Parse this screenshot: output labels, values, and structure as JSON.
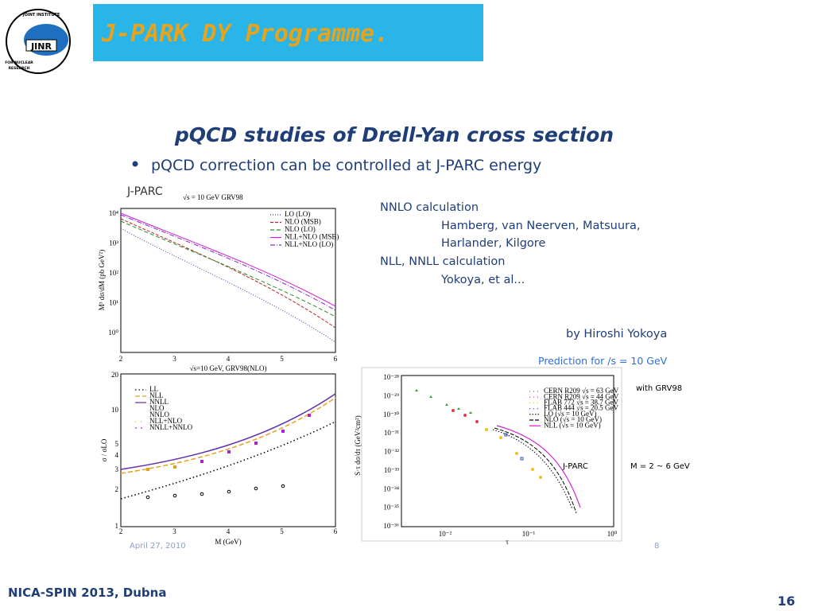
{
  "header": {
    "logo_top": "JOINT INSTITUTE",
    "logo_main": "JINR",
    "logo_bottom1": "FOR NUCLEAR",
    "logo_bottom2": "RESEARCH",
    "title": "J-PARK DY Programme."
  },
  "slide": {
    "heading": "pQCD studies of Drell-Yan cross section",
    "bullet": "pQCD correction can be controlled at J-PARC energy",
    "notes": [
      "NNLO calculation",
      "Hamberg, van Neerven, Matsuura,",
      "Harlander, Kilgore",
      "NLL, NNLL calculation",
      "Yokoya, et al..."
    ],
    "author": "by Hiroshi Yokoya",
    "prediction": "Prediction for /s = 10 GeV",
    "pdf": "with GRV98",
    "jparc": "J-PARC",
    "mass_range": "M = 2 ~ 6 GeV",
    "date": "April 27, 2010",
    "page": "8"
  },
  "plot_top": {
    "label": "J-PARC",
    "subtitle": "√s = 10 GeV GRV98",
    "ylabel": "M³ dσ/dM (pb GeV²)",
    "xlabel": "√s=10 GeV, GRV98(NLO)",
    "xticks": [
      "2",
      "3",
      "4",
      "5",
      "6"
    ],
    "yticks": [
      "10⁰",
      "10¹",
      "10²",
      "10³",
      "10⁴"
    ],
    "legend": [
      "LO (LO)",
      "NLO (MSB)",
      "NLO (LO)",
      "NLL+NLO (MSB)",
      "NLL+NLO (LO)"
    ]
  },
  "plot_ratio": {
    "ylabel": "σ / σLO",
    "xlabel": "M (GeV)",
    "xticks": [
      "2",
      "3",
      "4",
      "5",
      "6"
    ],
    "yticks": [
      "1",
      "2",
      "3",
      "4",
      "5",
      "10",
      "20"
    ],
    "legend": [
      "LL",
      "NLL",
      "NNLL",
      "NLO",
      "NNLO",
      "NLL+NLO",
      "NNLL+NNLO"
    ]
  },
  "plot_tau": {
    "ylabel": "S·τ dσ/dτ (GeV²cm²)",
    "xlabel": "τ",
    "xticks": [
      "10⁻²",
      "10⁻¹",
      "10⁰"
    ],
    "yticks": [
      "10⁻²⁸",
      "10⁻²⁹",
      "10⁻³⁰",
      "10⁻³¹",
      "10⁻³²",
      "10⁻³³",
      "10⁻³⁴",
      "10⁻³⁵",
      "10⁻³⁶"
    ],
    "legend": [
      "CERN R209 √s = 63 GeV",
      "CERN R209 √s = 44 GeV",
      "FLAB 772 √s = 38.7 GeV",
      "FLAB 444 √s = 20.5 GeV",
      "LO (√s = 10 GeV)",
      "NLO (√s = 10 GeV)",
      "NLL (√s = 10 GeV)"
    ]
  },
  "footer": {
    "conference": "NICA-SPIN 2013,  Dubna",
    "page": "16"
  }
}
